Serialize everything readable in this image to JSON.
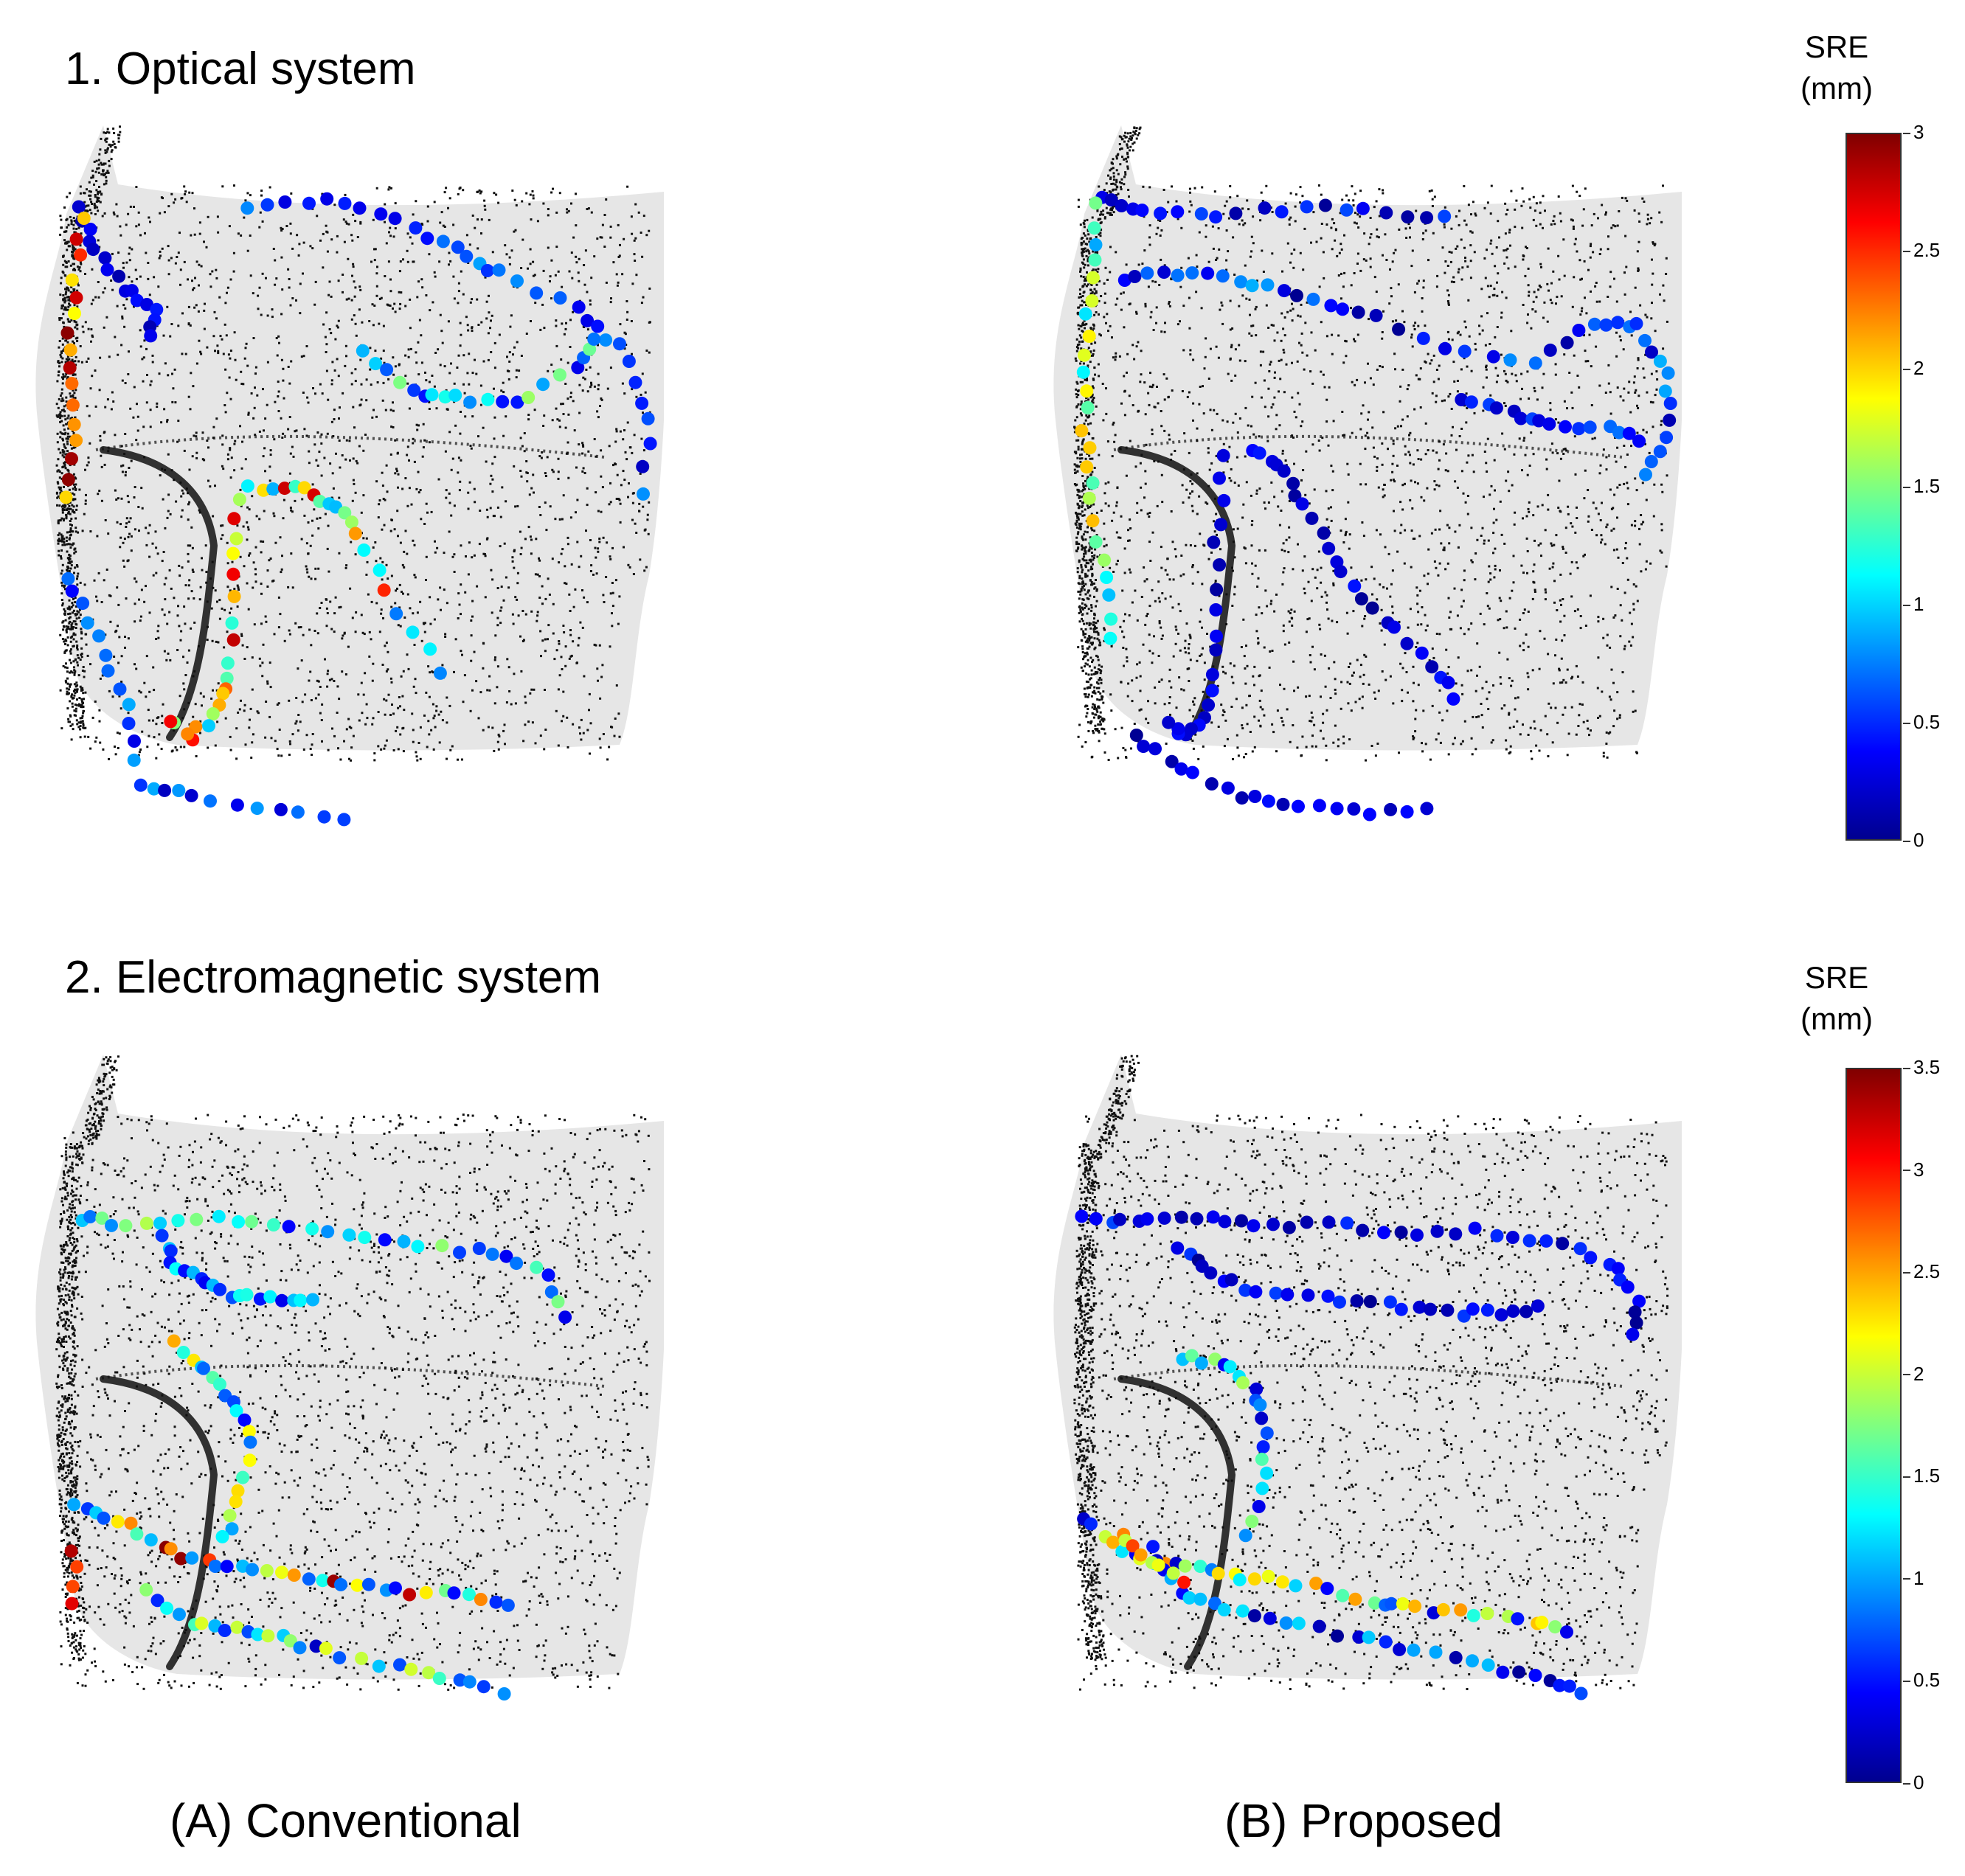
{
  "figure": {
    "rows": [
      {
        "title": "1. Optical system"
      },
      {
        "title": "2. Electromagnetic system"
      }
    ],
    "columns": [
      {
        "label": "(A) Conventional"
      },
      {
        "label": "(B) Proposed"
      }
    ]
  },
  "colorbars": [
    {
      "title_line1": "SRE",
      "title_line2": "(mm)",
      "min": 0,
      "max": 3,
      "ticks": [
        "3",
        "2.5",
        "2",
        "1.5",
        "1",
        "0.5",
        "0"
      ]
    },
    {
      "title_line1": "SRE",
      "title_line2": "(mm)",
      "min": 0,
      "max": 3.5,
      "ticks": [
        "3.5",
        "3",
        "2.5",
        "2",
        "1.5",
        "1",
        "0.5",
        "0"
      ]
    }
  ],
  "colormap": {
    "name": "jet",
    "stops": [
      "#00008f",
      "#0000ff",
      "#00ffff",
      "#ffff00",
      "#ff0000",
      "#800000"
    ]
  },
  "face_colors": {
    "surface": "#e6e6e6",
    "points": "#111111"
  }
}
